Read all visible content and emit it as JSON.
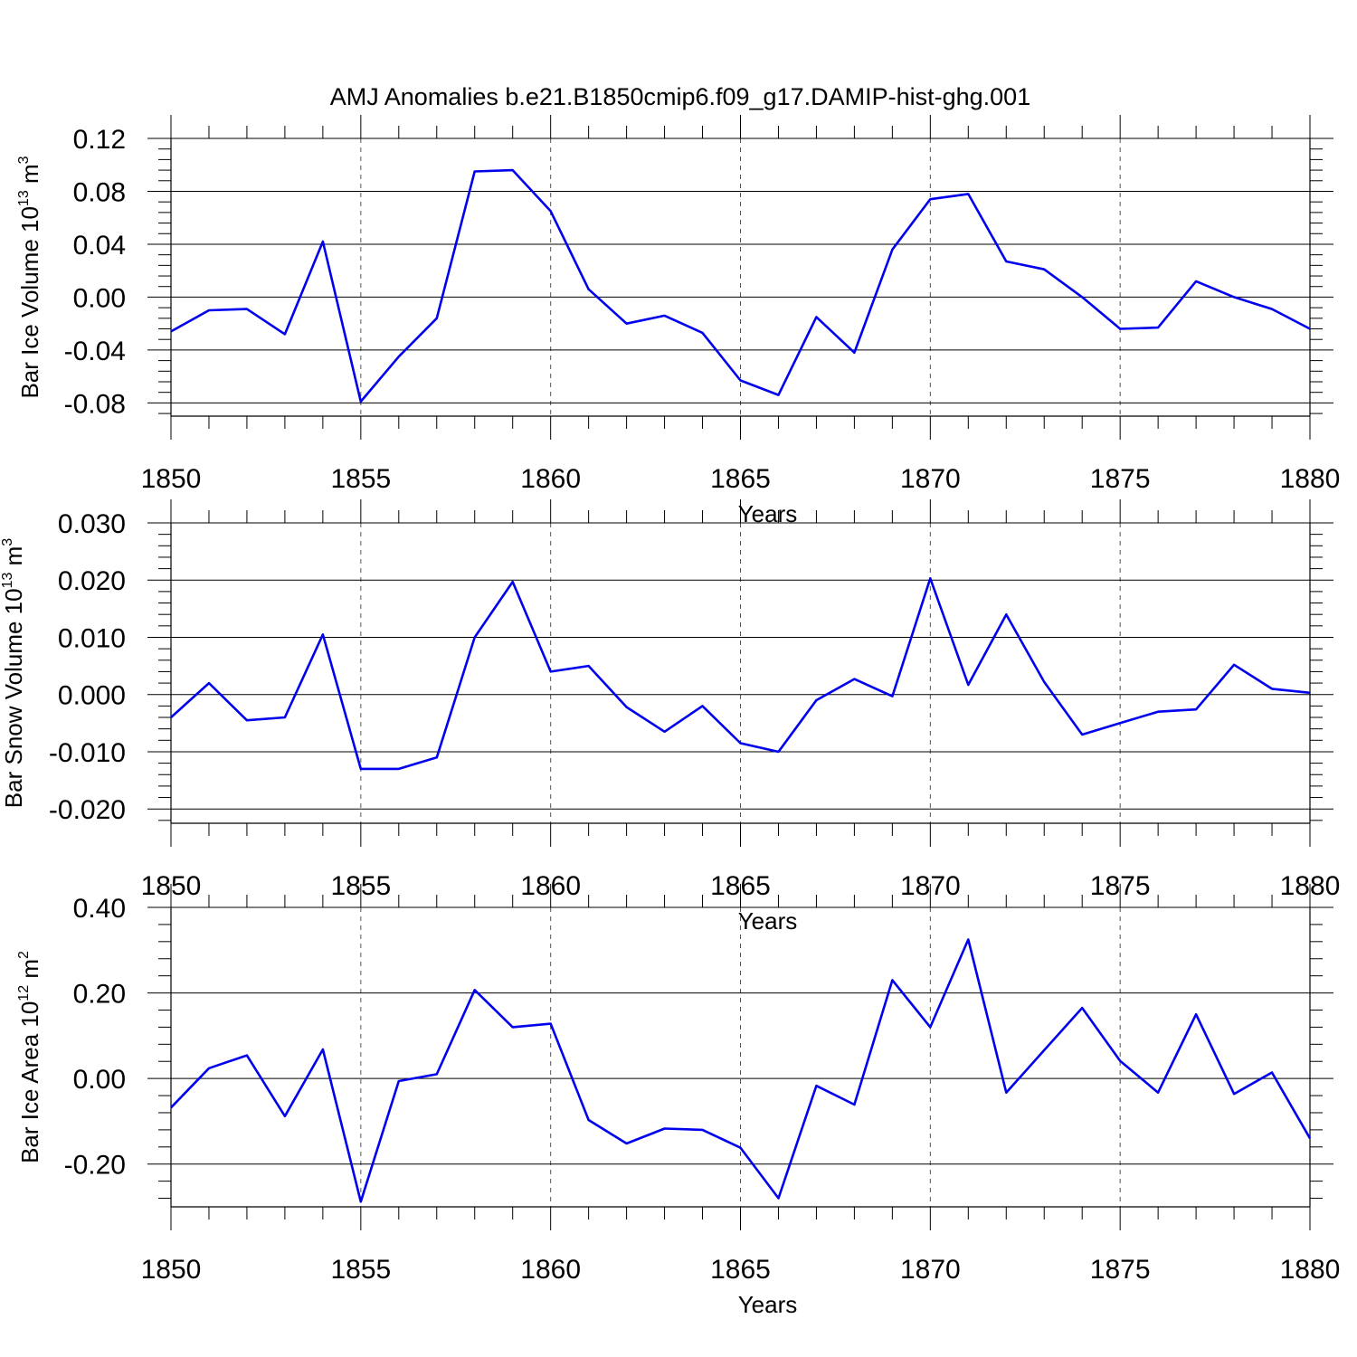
{
  "title": "AMJ Anomalies b.e21.B1850cmip6.f09_g17.DAMIP-hist-ghg.001",
  "colors": {
    "line": "#0000ee",
    "axis": "#000000",
    "grid": "#555555"
  },
  "chart_data": [
    {
      "type": "line",
      "name": "ice-volume",
      "ylabel_main": "Bar Ice Volume 10",
      "ylabel_exp": "13",
      "ylabel_unit": " m",
      "ylabel_unit_exp": "3",
      "xlabel": "Years",
      "xlim": [
        1850,
        1880
      ],
      "ylim": [
        -0.09,
        0.12
      ],
      "yticks": [
        0.12,
        0.08,
        0.04,
        0.0,
        -0.04,
        -0.08
      ],
      "ytick_labels": [
        "0.12",
        "0.08",
        "0.04",
        "0.00",
        "-0.04",
        "-0.08"
      ],
      "xticks": [
        1850,
        1855,
        1860,
        1865,
        1870,
        1875,
        1880
      ],
      "xtick_labels": [
        "1850",
        "1855",
        "1860",
        "1865",
        "1870",
        "1875",
        "1880"
      ],
      "x": [
        1850,
        1851,
        1852,
        1853,
        1854,
        1855,
        1856,
        1857,
        1858,
        1859,
        1860,
        1861,
        1862,
        1863,
        1864,
        1865,
        1866,
        1867,
        1868,
        1869,
        1870,
        1871,
        1872,
        1873,
        1874,
        1875,
        1876,
        1877,
        1878,
        1879,
        1880
      ],
      "values": [
        -0.026,
        -0.01,
        -0.009,
        -0.028,
        0.042,
        -0.079,
        -0.045,
        -0.016,
        0.095,
        0.096,
        0.065,
        0.006,
        -0.02,
        -0.014,
        -0.027,
        -0.063,
        -0.074,
        -0.015,
        -0.042,
        0.036,
        0.074,
        0.078,
        0.027,
        0.021,
        0.0,
        -0.024,
        -0.023,
        0.012,
        0.0,
        -0.009,
        -0.024
      ]
    },
    {
      "type": "line",
      "name": "snow-volume",
      "ylabel_main": "Bar Snow Volume 10",
      "ylabel_exp": "13",
      "ylabel_unit": " m",
      "ylabel_unit_exp": "3",
      "xlabel": "Years",
      "xlim": [
        1850,
        1880
      ],
      "ylim": [
        -0.0225,
        0.03
      ],
      "yticks": [
        0.03,
        0.02,
        0.01,
        0.0,
        -0.01,
        -0.02
      ],
      "ytick_labels": [
        "0.030",
        "0.020",
        "0.010",
        "0.000",
        "-0.010",
        "-0.020"
      ],
      "xticks": [
        1850,
        1855,
        1860,
        1865,
        1870,
        1875,
        1880
      ],
      "xtick_labels": [
        "1850",
        "1855",
        "1860",
        "1865",
        "1870",
        "1875",
        "1880"
      ],
      "x": [
        1850,
        1851,
        1852,
        1853,
        1854,
        1855,
        1856,
        1857,
        1858,
        1859,
        1860,
        1861,
        1862,
        1863,
        1864,
        1865,
        1866,
        1867,
        1868,
        1869,
        1870,
        1871,
        1872,
        1873,
        1874,
        1875,
        1876,
        1877,
        1878,
        1879,
        1880
      ],
      "values": [
        -0.004,
        0.002,
        -0.0045,
        -0.004,
        0.0105,
        -0.013,
        -0.013,
        -0.011,
        0.01,
        0.0197,
        0.004,
        0.005,
        -0.0022,
        -0.0065,
        -0.002,
        -0.0085,
        -0.01,
        -0.001,
        0.0027,
        -0.0003,
        0.0203,
        0.0017,
        0.014,
        0.0022,
        -0.007,
        -0.005,
        -0.003,
        -0.0026,
        0.0052,
        0.001,
        0.0003
      ]
    },
    {
      "type": "line",
      "name": "ice-area",
      "ylabel_main": "Bar Ice Area 10",
      "ylabel_exp": "12",
      "ylabel_unit": " m",
      "ylabel_unit_exp": "2",
      "xlabel": "Years",
      "xlim": [
        1850,
        1880
      ],
      "ylim": [
        -0.3,
        0.4
      ],
      "yticks": [
        0.4,
        0.2,
        0.0,
        -0.2
      ],
      "ytick_labels": [
        "0.40",
        "0.20",
        "0.00",
        "-0.20"
      ],
      "xticks": [
        1850,
        1855,
        1860,
        1865,
        1870,
        1875,
        1880
      ],
      "xtick_labels": [
        "1850",
        "1855",
        "1860",
        "1865",
        "1870",
        "1875",
        "1880"
      ],
      "x": [
        1850,
        1851,
        1852,
        1853,
        1854,
        1855,
        1856,
        1857,
        1858,
        1859,
        1860,
        1861,
        1862,
        1863,
        1864,
        1865,
        1866,
        1867,
        1868,
        1869,
        1870,
        1871,
        1872,
        1873,
        1874,
        1875,
        1876,
        1877,
        1878,
        1879,
        1880
      ],
      "values": [
        -0.068,
        0.024,
        0.054,
        -0.088,
        0.068,
        -0.288,
        -0.006,
        0.01,
        0.207,
        0.12,
        0.128,
        -0.097,
        -0.152,
        -0.117,
        -0.12,
        -0.162,
        -0.28,
        -0.017,
        -0.061,
        0.23,
        0.12,
        0.325,
        -0.033,
        0.066,
        0.165,
        0.041,
        -0.033,
        0.15,
        -0.036,
        0.014,
        -0.14
      ]
    }
  ]
}
